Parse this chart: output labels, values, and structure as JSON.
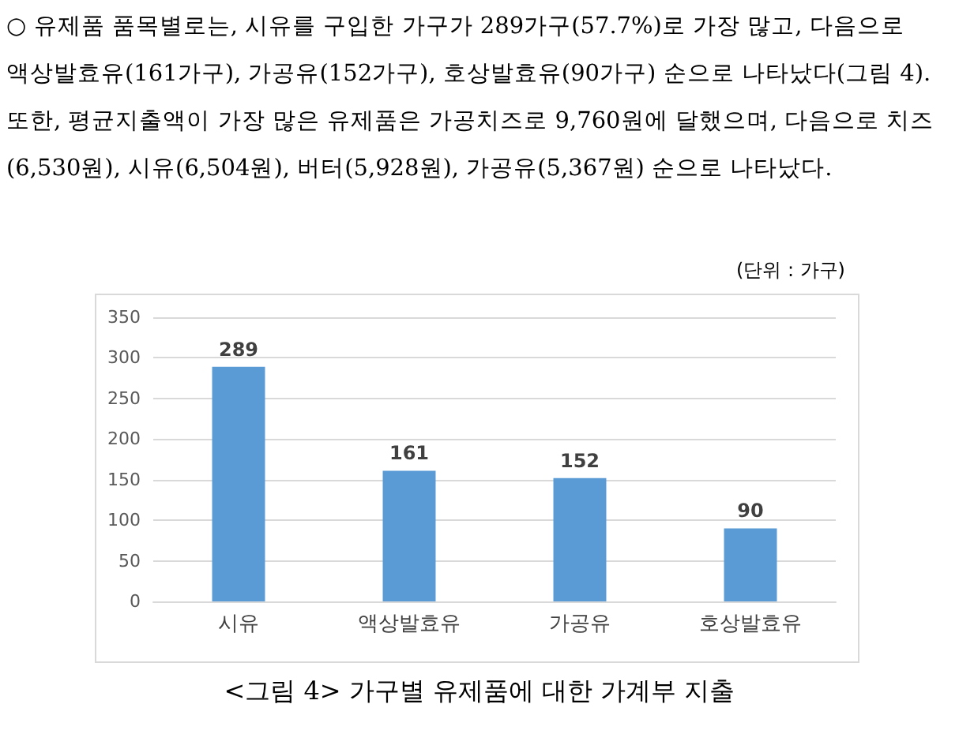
{
  "chart_data": {
    "type": "bar",
    "title": "<그림 4> 가구별 유제품에 대한 가계부 지출",
    "annotations": [
      "○ 유제품 품목별로는, 시유를 구입한 가구가 289가구(57.7%)로 가장 많고, 다음으로 액상발효유(161가구), 가공유(152가구), 호상발효유(90가구) 순으로 나타났다(그림 4). 또한, 평균지출액이 가장 많은 유제품은 가공치즈로 9,760원에 달했으며, 다음으로 치즈(6,530원), 시유(6,504원), 버터(5,928원), 가공유(5,367원) 순으로 나타났다.",
      "(단위 : 가구)"
    ],
    "categories": [
      "시유",
      "액상발효유",
      "가공유",
      "호상발효유"
    ],
    "values": [
      289,
      161,
      152,
      90
    ],
    "color": "#5b9bd5",
    "ylim": [
      0,
      350
    ],
    "yticks": [
      0,
      50,
      100,
      150,
      200,
      250,
      300,
      350
    ],
    "grid": "y",
    "data_labels": true
  }
}
